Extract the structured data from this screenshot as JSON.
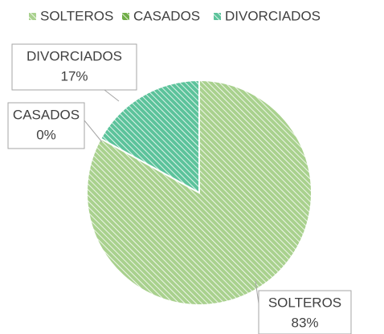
{
  "chart_data": {
    "type": "pie",
    "categories": [
      "SOLTEROS",
      "CASADOS",
      "DIVORCIADOS"
    ],
    "values": [
      83,
      0,
      17
    ],
    "value_labels": [
      "83%",
      "0%",
      "17%"
    ],
    "colors": [
      "#a9d18e",
      "#70ad47",
      "#5cc39b"
    ],
    "legend": "top"
  }
}
